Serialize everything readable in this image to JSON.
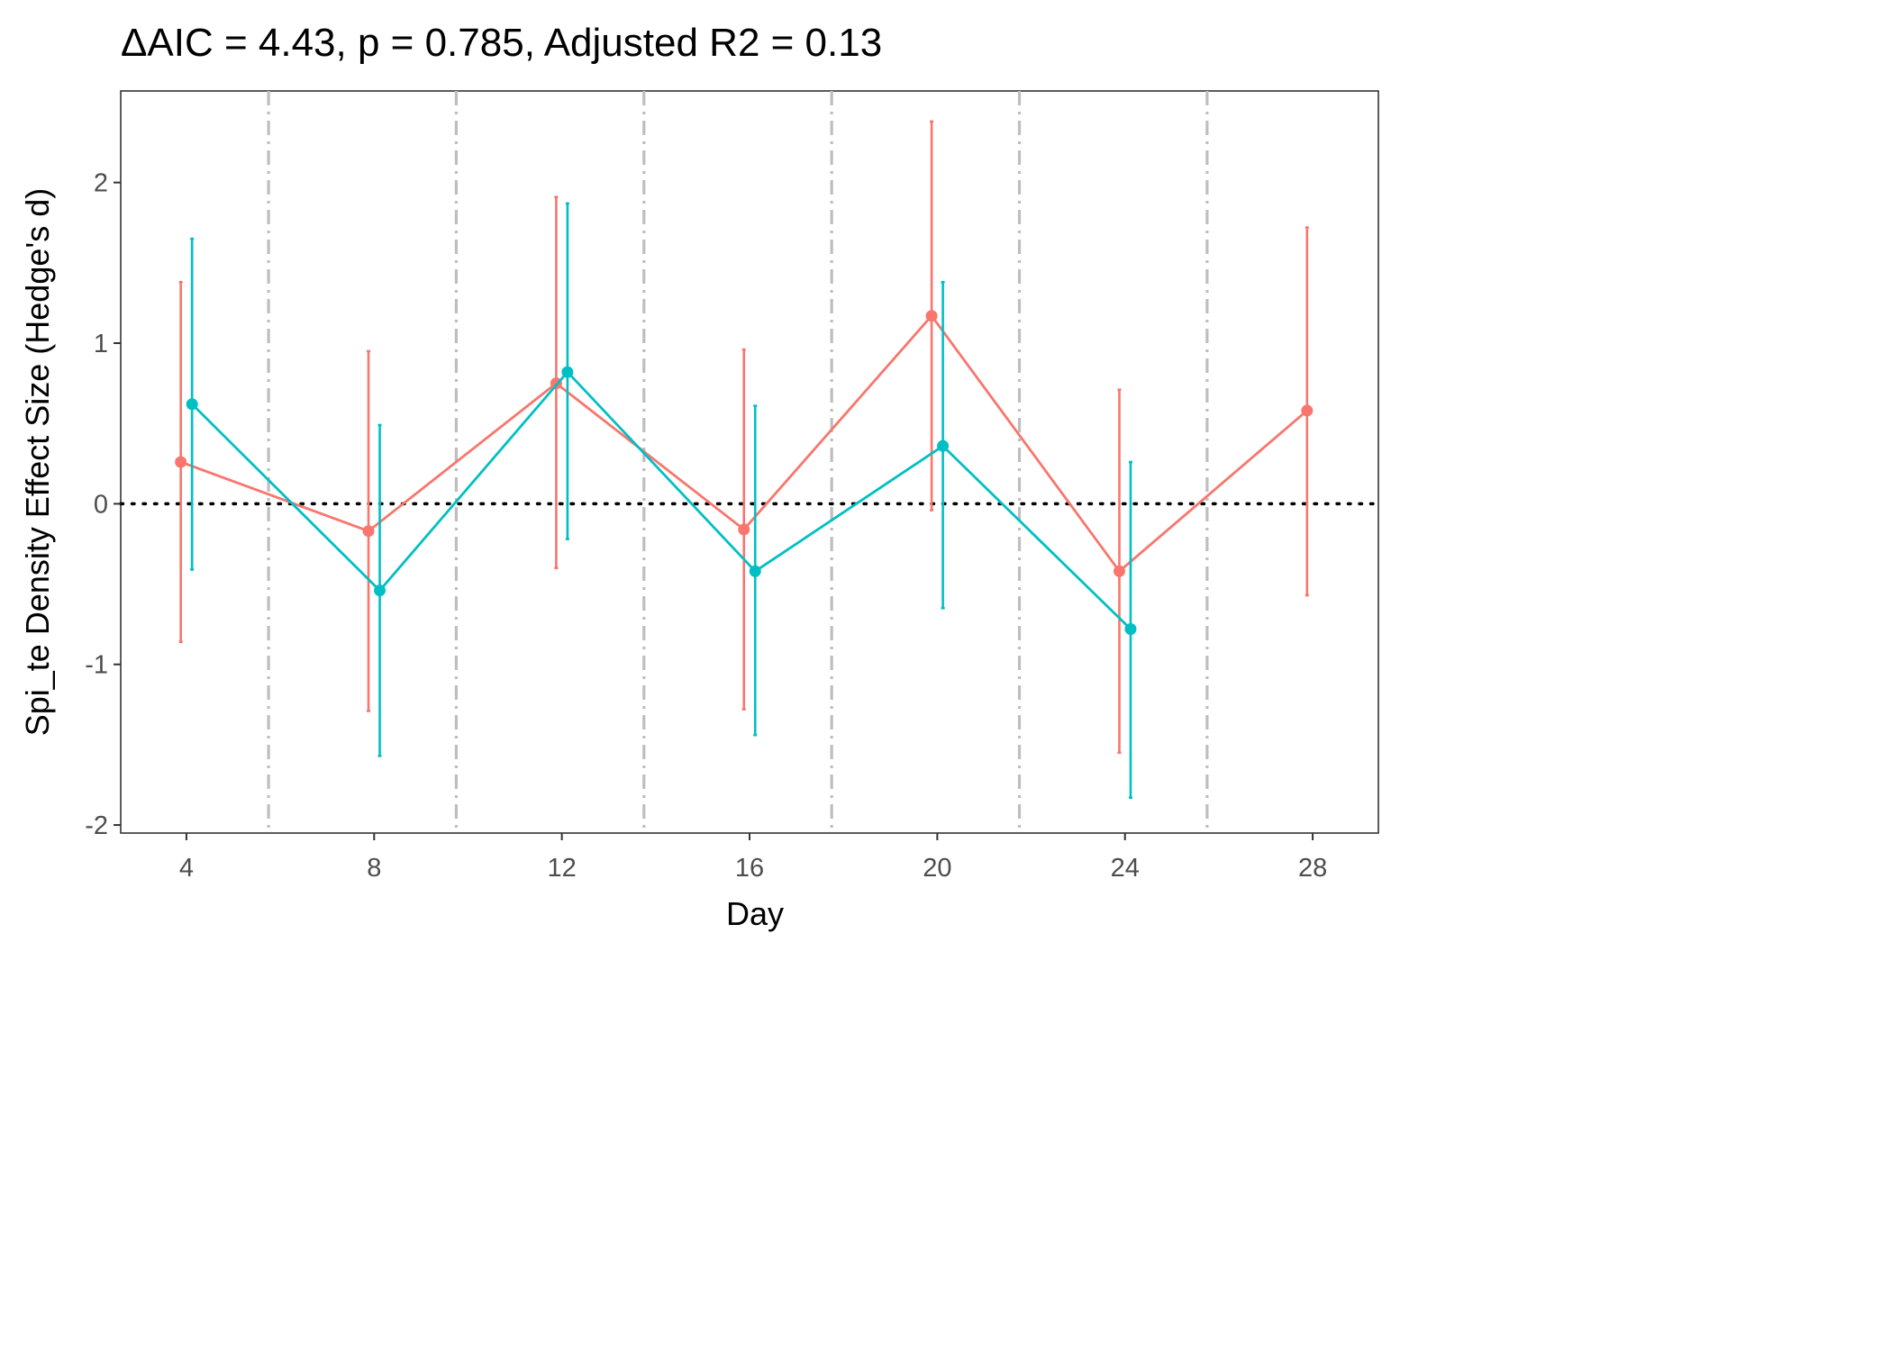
{
  "chart_data": {
    "type": "line",
    "title": "ΔAIC = 4.43, p = 0.785, Adjusted R2 = 0.13",
    "xlabel": "Day",
    "ylabel": "Spi_te Density Effect Size (Hedge's d)",
    "xlim": [
      2.6,
      29.4
    ],
    "ylim": [
      -2.05,
      2.57
    ],
    "xticks": [
      4,
      8,
      12,
      16,
      20,
      24,
      28
    ],
    "xtick_labels": [
      "4",
      "8",
      "12",
      "16",
      "20",
      "24",
      "28"
    ],
    "yticks": [
      -2,
      -1,
      0,
      1,
      2
    ],
    "ytick_labels": [
      "-2",
      "-1",
      "0",
      "1",
      "2"
    ],
    "reference_line_y": 0,
    "vertical_dashed_lines_x": [
      5.75,
      9.75,
      13.75,
      17.75,
      21.75,
      25.75
    ],
    "grid": false,
    "legend": "none",
    "series": [
      {
        "color": "#F8766D",
        "points": [
          {
            "x": 3.88,
            "y": 0.26,
            "lo": -0.86,
            "hi": 1.38
          },
          {
            "x": 7.88,
            "y": -0.17,
            "lo": -1.29,
            "hi": 0.95
          },
          {
            "x": 11.88,
            "y": 0.75,
            "lo": -0.4,
            "hi": 1.91
          },
          {
            "x": 15.88,
            "y": -0.16,
            "lo": -1.28,
            "hi": 0.96
          },
          {
            "x": 19.88,
            "y": 1.17,
            "lo": -0.04,
            "hi": 2.38
          },
          {
            "x": 23.88,
            "y": -0.42,
            "lo": -1.55,
            "hi": 0.71
          },
          {
            "x": 27.88,
            "y": 0.58,
            "lo": -0.57,
            "hi": 1.72
          }
        ]
      },
      {
        "color": "#00BFC4",
        "points": [
          {
            "x": 4.12,
            "y": 0.62,
            "lo": -0.41,
            "hi": 1.65
          },
          {
            "x": 8.12,
            "y": -0.54,
            "lo": -1.57,
            "hi": 0.49
          },
          {
            "x": 12.12,
            "y": 0.82,
            "lo": -0.22,
            "hi": 1.87
          },
          {
            "x": 16.12,
            "y": -0.42,
            "lo": -1.44,
            "hi": 0.61
          },
          {
            "x": 20.12,
            "y": 0.36,
            "lo": -0.65,
            "hi": 1.38
          },
          {
            "x": 24.12,
            "y": -0.78,
            "lo": -1.83,
            "hi": 0.26
          }
        ]
      }
    ]
  }
}
